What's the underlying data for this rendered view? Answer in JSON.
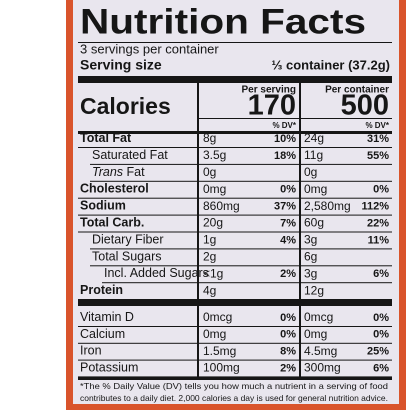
{
  "label": {
    "title": "Nutrition Facts",
    "servings": "3 servings per container",
    "serving_size_label": "Serving size",
    "serving_size": "⅓ container (37.2g)",
    "calories_label": "Calories",
    "columns": [
      {
        "header": "Per serving",
        "calories": "170",
        "dv_header": "% DV*"
      },
      {
        "header": "Per container",
        "calories": "500",
        "dv_header": "% DV*"
      }
    ],
    "nutrients": [
      {
        "name": "Total Fat",
        "bold": true,
        "indent": 0,
        "values": [
          [
            "8g",
            "10%"
          ],
          [
            "24g",
            "31%"
          ]
        ]
      },
      {
        "name": "Saturated Fat",
        "bold": false,
        "indent": 1,
        "values": [
          [
            "3.5g",
            "18%"
          ],
          [
            "11g",
            "55%"
          ]
        ]
      },
      {
        "name_italic": "Trans",
        "name": "Fat",
        "bold": false,
        "indent": 1,
        "values": [
          [
            "0g"
          ],
          [
            "0g"
          ]
        ]
      },
      {
        "name": "Cholesterol",
        "bold": true,
        "indent": 0,
        "values": [
          [
            "0mg",
            "0%"
          ],
          [
            "0mg",
            "0%"
          ]
        ]
      },
      {
        "name": "Sodium",
        "bold": true,
        "indent": 0,
        "values": [
          [
            "860mg",
            "37%"
          ],
          [
            "2,580mg",
            "112%"
          ]
        ]
      },
      {
        "name": "Total Carb.",
        "bold": true,
        "indent": 0,
        "values": [
          [
            "20g",
            "7%"
          ],
          [
            "60g",
            "22%"
          ]
        ]
      },
      {
        "name": "Dietary Fiber",
        "bold": false,
        "indent": 1,
        "values": [
          [
            "1g",
            "4%"
          ],
          [
            "3g",
            "11%"
          ]
        ]
      },
      {
        "name": "Total Sugars",
        "bold": false,
        "indent": 1,
        "values": [
          [
            "2g"
          ],
          [
            "6g"
          ]
        ]
      },
      {
        "name": "Incl. Added Sugars",
        "bold": false,
        "indent": 2,
        "values": [
          [
            "<1g",
            "2%"
          ],
          [
            "3g",
            "6%"
          ]
        ]
      },
      {
        "name": "Protein",
        "bold": true,
        "indent": 0,
        "values": [
          [
            "4g"
          ],
          [
            "12g"
          ]
        ]
      }
    ],
    "vitamins": [
      {
        "name": "Vitamin D",
        "values": [
          [
            "0mcg",
            "0%"
          ],
          [
            "0mcg",
            "0%"
          ]
        ]
      },
      {
        "name": "Calcium",
        "values": [
          [
            "0mg",
            "0%"
          ],
          [
            "0mg",
            "0%"
          ]
        ]
      },
      {
        "name": "Iron",
        "values": [
          [
            "1.5mg",
            "8%"
          ],
          [
            "4.5mg",
            "25%"
          ]
        ]
      },
      {
        "name": "Potassium",
        "values": [
          [
            "100mg",
            "2%"
          ],
          [
            "300mg",
            "6%"
          ]
        ]
      }
    ],
    "footnote": [
      "*The % Daily Value (DV) tells you how much a nutrient in a serving of food",
      "contributes to a daily diet. 2,000 calories a day is used for general nutrition advice."
    ]
  }
}
